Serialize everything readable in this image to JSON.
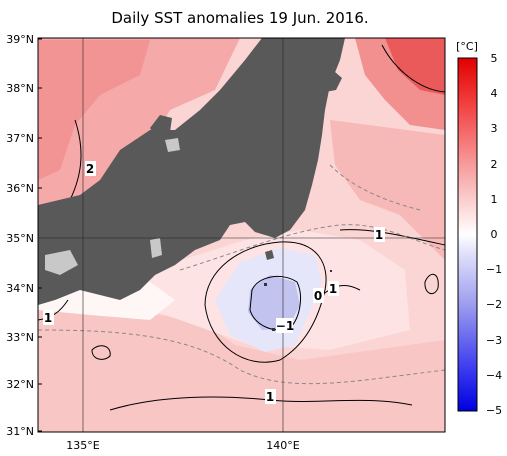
{
  "title": "Daily SST anomalies 19 Jun. 2016.",
  "lat_labels": [
    "39°N",
    "38°N",
    "37°N",
    "36°N",
    "35°N",
    "34°N",
    "33°N",
    "32°N",
    "31°N"
  ],
  "lon_labels": [
    "135°E",
    "140°E"
  ],
  "colorbar": {
    "unit": "[°C]",
    "ticks": [
      "5",
      "4",
      "3",
      "2",
      "1",
      "0",
      "−1",
      "−2",
      "−3",
      "−4",
      "−5"
    ]
  },
  "contour_labels": [
    "2",
    "1",
    "1",
    "0",
    "1",
    "−1",
    "1"
  ],
  "colors": {
    "land": "#595959",
    "lake": "#c8c8c8",
    "warm_1": "#fde3e3",
    "warm_2": "#f8bcbc",
    "warm_3": "#f28c8c",
    "warm_4": "#ea5a5a",
    "cool_1": "#e6e6fb",
    "cool_2": "#c3c3f0"
  }
}
